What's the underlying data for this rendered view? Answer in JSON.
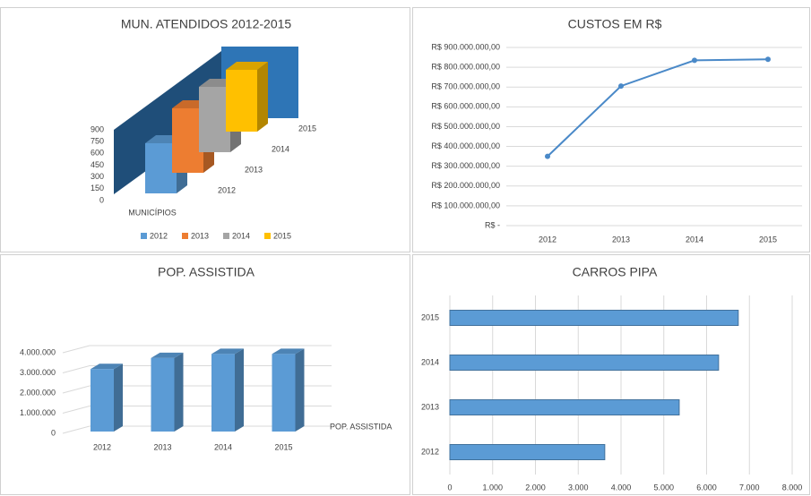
{
  "chart_data": [
    {
      "type": "bar3d",
      "title": "MUN. ATENDIDOS 2012-2015",
      "categories": [
        "MUNICÍPIOS"
      ],
      "series": [
        {
          "name": "2012",
          "color": "#5b9bd5",
          "values": [
            560
          ]
        },
        {
          "name": "2013",
          "color": "#ed7d31",
          "values": [
            720
          ]
        },
        {
          "name": "2014",
          "color": "#a5a5a5",
          "values": [
            730
          ]
        },
        {
          "name": "2015",
          "color": "#ffc000",
          "values": [
            690
          ]
        }
      ],
      "ylim": [
        0,
        900
      ],
      "yticks": [
        0,
        150,
        300,
        450,
        600,
        750,
        900
      ],
      "legend": "bottom"
    },
    {
      "type": "line",
      "title": "CUSTOS EM R$",
      "categories": [
        "2012",
        "2013",
        "2014",
        "2015"
      ],
      "values": [
        350000000,
        705000000,
        835000000,
        840000000
      ],
      "color": "#4a89c8",
      "ylim": [
        0,
        900000000
      ],
      "yticks": [
        {
          "value": 0,
          "label": "R$ -"
        },
        {
          "value": 100000000,
          "label": "R$ 100.000.000,00"
        },
        {
          "value": 200000000,
          "label": "R$ 200.000.000,00"
        },
        {
          "value": 300000000,
          "label": "R$ 300.000.000,00"
        },
        {
          "value": 400000000,
          "label": "R$ 400.000.000,00"
        },
        {
          "value": 500000000,
          "label": "R$ 500.000.000,00"
        },
        {
          "value": 600000000,
          "label": "R$ 600.000.000,00"
        },
        {
          "value": 700000000,
          "label": "R$ 700.000.000,00"
        },
        {
          "value": 800000000,
          "label": "R$ 800.000.000,00"
        },
        {
          "value": 900000000,
          "label": "R$ 900.000.000,00"
        }
      ],
      "grid": true
    },
    {
      "type": "column3d",
      "title": "POP. ASSISTIDA",
      "categories": [
        "2012",
        "2013",
        "2014",
        "2015"
      ],
      "series": [
        {
          "name": "POP. ASSISTIDA",
          "color": "#5b9bd5",
          "values": [
            3100000,
            3650000,
            3850000,
            3850000
          ]
        }
      ],
      "ylim": [
        0,
        4000000
      ],
      "yticks": [
        0,
        {
          "value": 1000000,
          "label": "1.000.000"
        },
        {
          "value": 2000000,
          "label": "2.000.000"
        },
        {
          "value": 3000000,
          "label": "3.000.000"
        },
        {
          "value": 4000000,
          "label": "4.000.000"
        }
      ],
      "grid": true
    },
    {
      "type": "barh",
      "title": "CARROS PIPA",
      "categories": [
        "2012",
        "2013",
        "2014",
        "2015"
      ],
      "values": [
        3620,
        5360,
        6280,
        6740
      ],
      "color": "#5b9bd5",
      "xlim": [
        0,
        8000
      ],
      "xticks": [
        0,
        {
          "value": 1000,
          "label": "1.000"
        },
        {
          "value": 2000,
          "label": "2.000"
        },
        {
          "value": 3000,
          "label": "3.000"
        },
        {
          "value": 4000,
          "label": "4.000"
        },
        {
          "value": 5000,
          "label": "5.000"
        },
        {
          "value": 6000,
          "label": "6.000"
        },
        {
          "value": 7000,
          "label": "7.000"
        },
        {
          "value": 8000,
          "label": "8.000"
        }
      ],
      "grid": true
    }
  ]
}
